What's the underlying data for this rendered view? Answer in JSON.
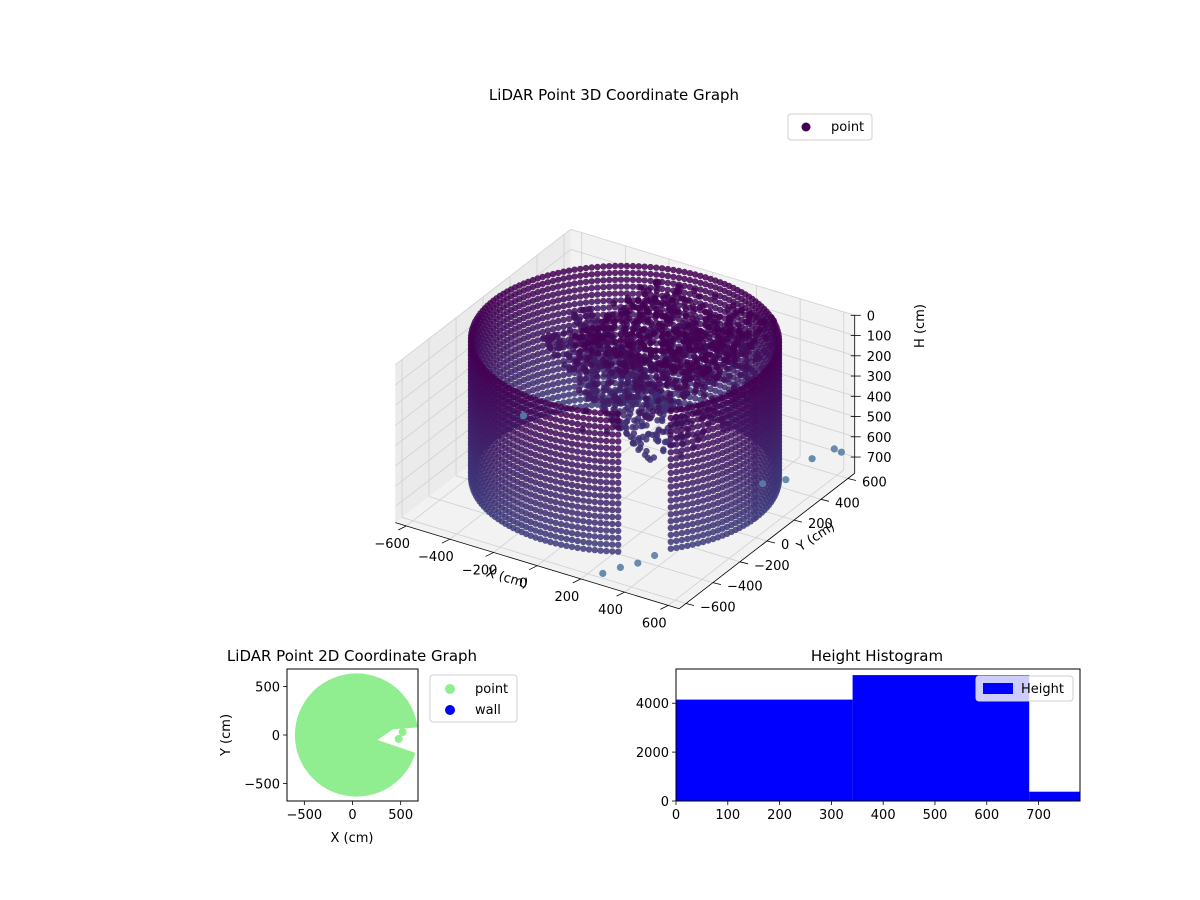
{
  "colors": {
    "point3d": "#440154",
    "point3d_mid": "#3b528b",
    "point3d_light": "#5a7fa8",
    "point2d": "#90ee90",
    "wall2d": "#0000ff",
    "hist": "#0000ff",
    "pane": "#f2f2f2",
    "pane_side": "#ebebeb",
    "grid": "#d0d0d0"
  },
  "chart_data": [
    {
      "type": "scatter",
      "title": "LiDAR Point 3D Coordinate Graph",
      "xlabel": "X (cm)",
      "ylabel": "Y (cm)",
      "zlabel": "H (cm)",
      "x_ticks": [
        "−600",
        "−400",
        "−200",
        "0",
        "200",
        "400",
        "600"
      ],
      "y_ticks": [
        "600",
        "400",
        "200",
        "0",
        "−200",
        "−400",
        "−600"
      ],
      "z_ticks": [
        "0",
        "100",
        "200",
        "300",
        "400",
        "500",
        "600",
        "700"
      ],
      "xlim": [
        -650,
        650
      ],
      "ylim": [
        -650,
        650
      ],
      "zlim": [
        0,
        780
      ],
      "z_inverted": true,
      "legend": {
        "entries": [
          "point"
        ],
        "placement": "top-right"
      },
      "shape": "cylindrical wall of radius ~600 cm, heights 0–680 cm, with interior clutter and scattered outliers",
      "outliers": [
        {
          "x": 350,
          "y": -600,
          "h": 700
        },
        {
          "x": 380,
          "y": -520,
          "h": 710
        },
        {
          "x": 420,
          "y": -460,
          "h": 690
        },
        {
          "x": 300,
          "y": -650,
          "h": 720
        },
        {
          "x": 600,
          "y": 580,
          "h": 640
        },
        {
          "x": 620,
          "y": 600,
          "h": 660
        },
        {
          "x": 560,
          "y": 480,
          "h": 650
        },
        {
          "x": -650,
          "y": 300,
          "h": 740
        },
        {
          "x": 520,
          "y": 350,
          "h": 700
        },
        {
          "x": 470,
          "y": 260,
          "h": 690
        }
      ]
    },
    {
      "type": "scatter",
      "title": "LiDAR Point 2D Coordinate Graph",
      "xlabel": "X (cm)",
      "ylabel": "Y (cm)",
      "x_ticks": [
        "−500",
        "0",
        "500"
      ],
      "y_ticks": [
        "500",
        "0",
        "−500"
      ],
      "xlim": [
        -680,
        680
      ],
      "ylim": [
        -680,
        680
      ],
      "legend": {
        "entries": [
          "point",
          "wall"
        ],
        "placement": "outside-right"
      },
      "series": [
        {
          "name": "point",
          "shape": "filled disc radius ~640 cm with a notch near (300,-80)"
        },
        {
          "name": "wall",
          "values": []
        }
      ]
    },
    {
      "type": "bar",
      "title": "Height Histogram",
      "x_ticks": [
        "0",
        "100",
        "200",
        "300",
        "400",
        "500",
        "600",
        "700"
      ],
      "y_ticks": [
        "0",
        "2000",
        "4000"
      ],
      "xlim": [
        0,
        780
      ],
      "ylim": [
        0,
        5400
      ],
      "legend": {
        "entries": [
          "Height"
        ],
        "placement": "upper-right"
      },
      "bins": [
        {
          "from": 0,
          "to": 341,
          "count": 4150
        },
        {
          "from": 341,
          "to": 682,
          "count": 5150
        },
        {
          "from": 682,
          "to": 1023,
          "count": 380
        }
      ]
    }
  ]
}
